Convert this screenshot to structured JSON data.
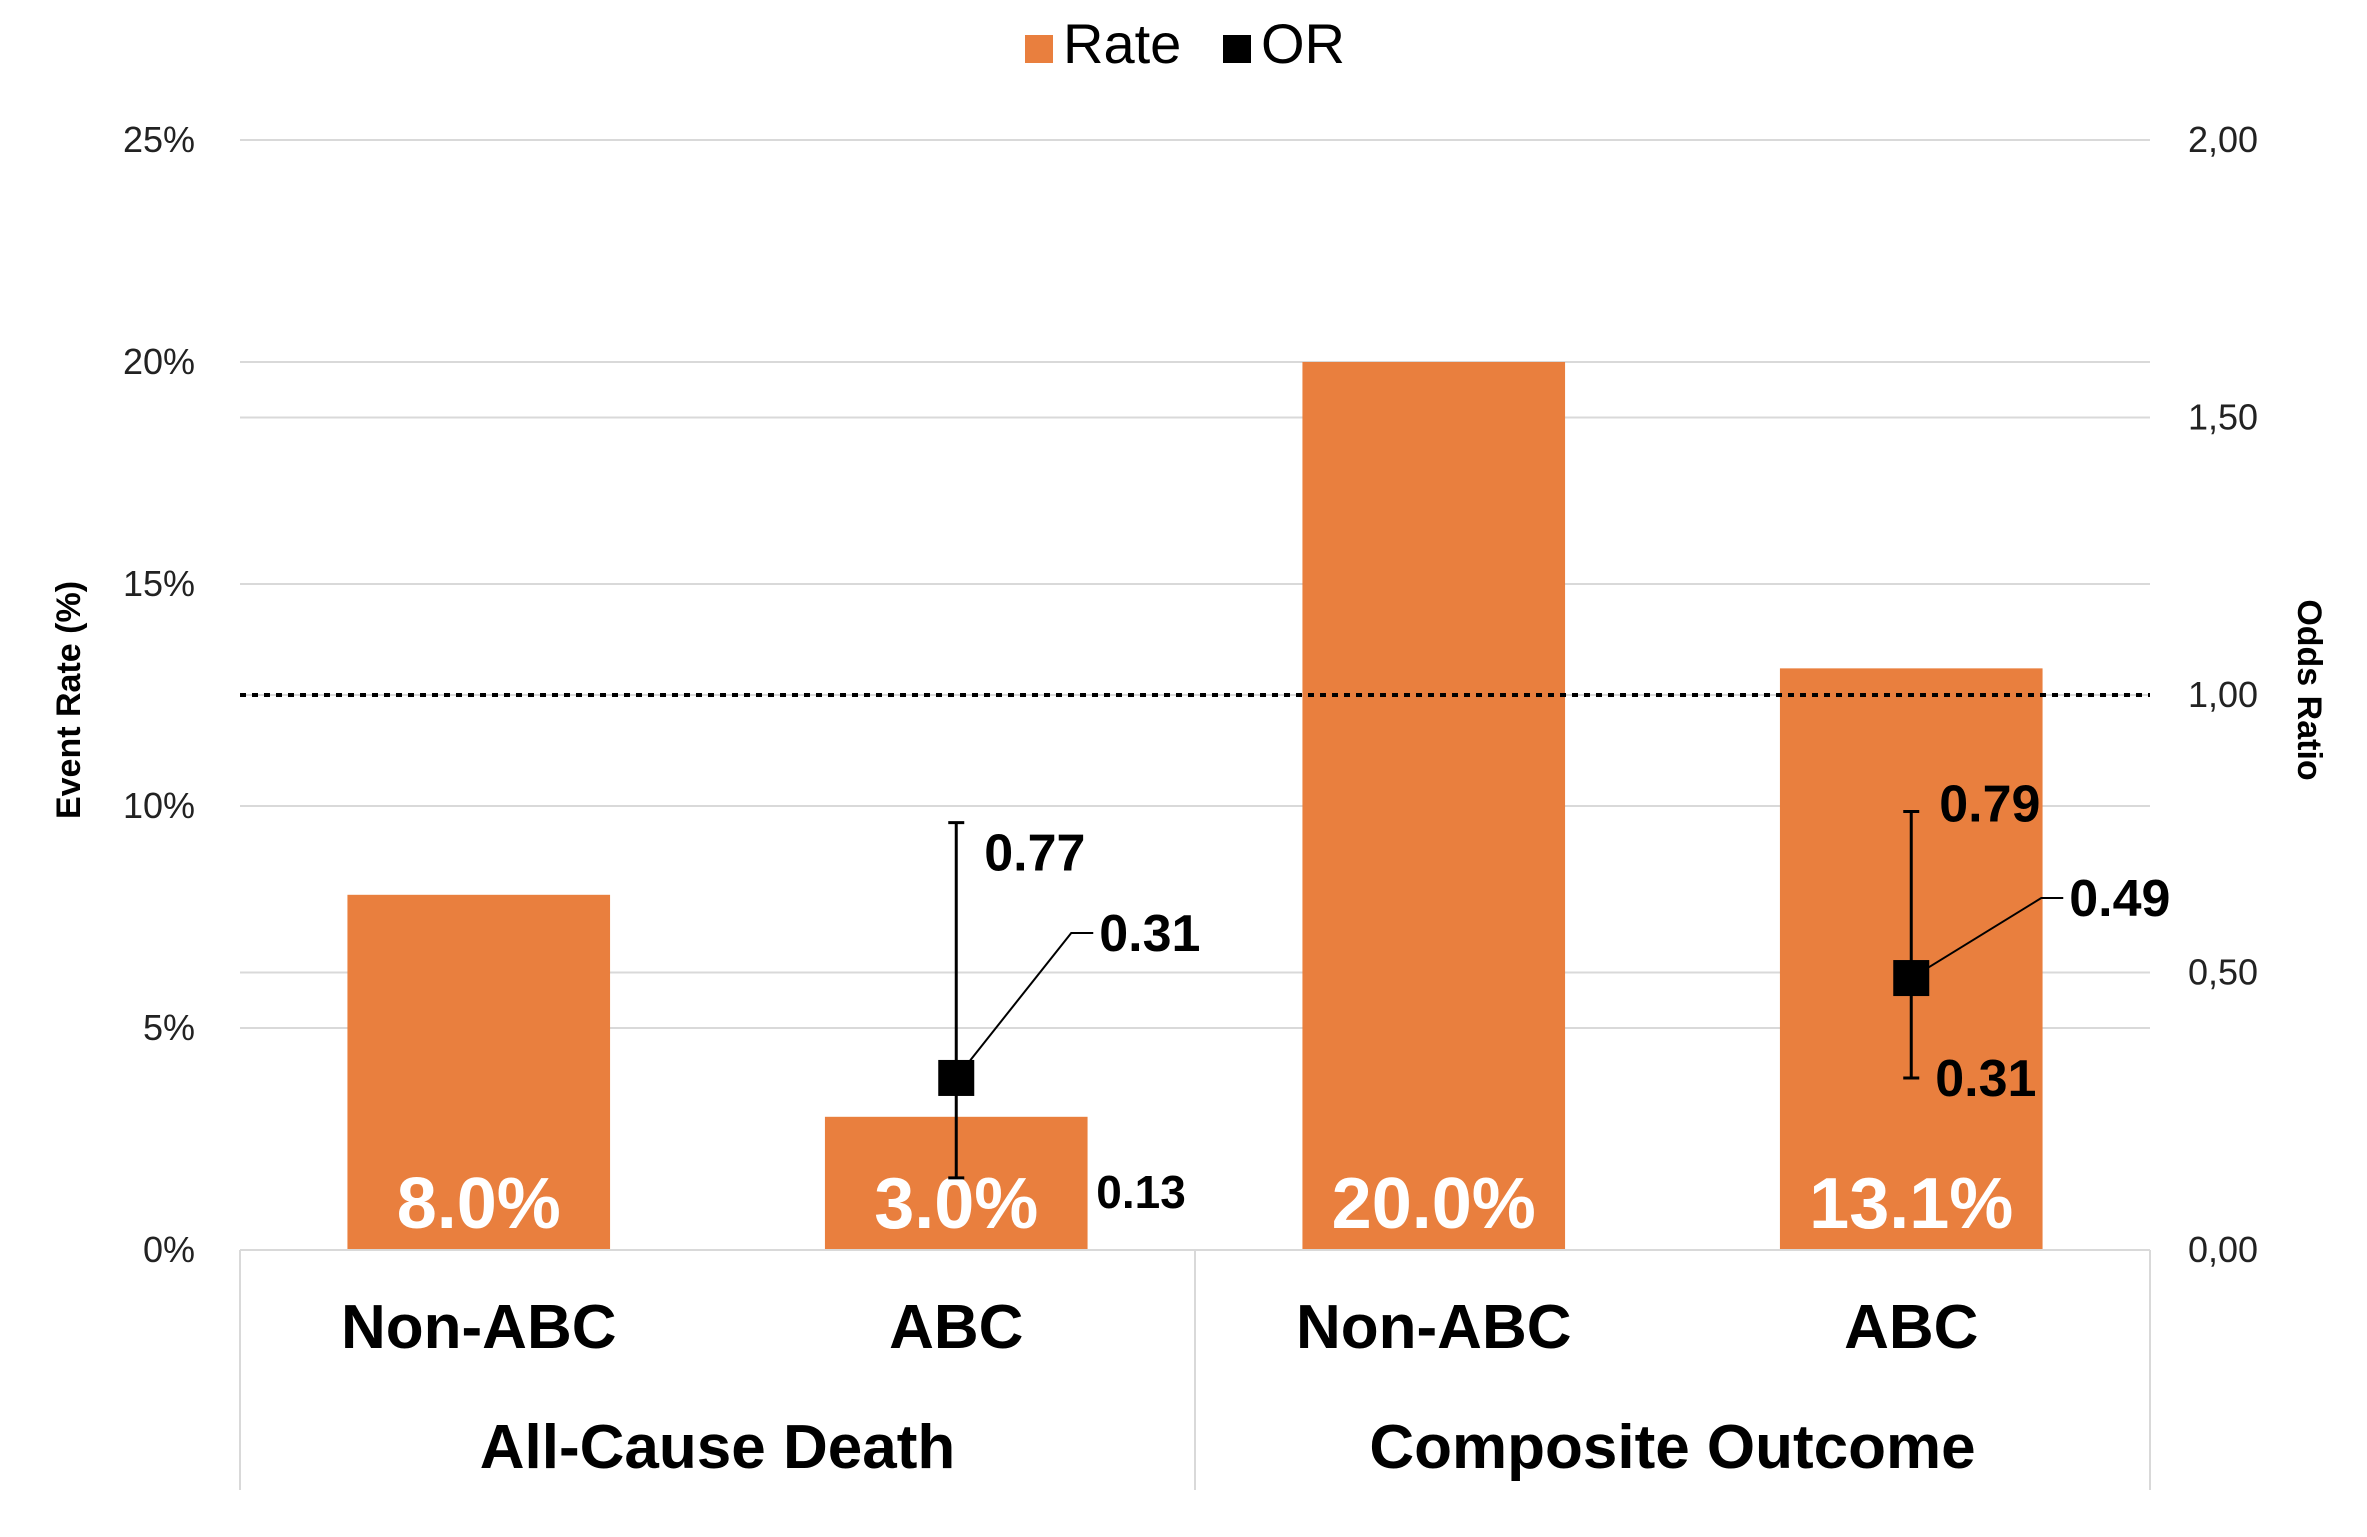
{
  "colors": {
    "rate": "#E97F3E",
    "or": "#000000",
    "grid": "#D9D9D9",
    "axis_text": "#222222",
    "bar_label": "#ffffff"
  },
  "legend": [
    {
      "name": "Rate",
      "color": "#E97F3E"
    },
    {
      "name": "OR",
      "color": "#000000"
    }
  ],
  "chart_data": {
    "type": "bar",
    "groups": [
      "All-Cause Death",
      "Composite Outcome"
    ],
    "categories": [
      "Non-ABC",
      "ABC",
      "Non-ABC",
      "ABC"
    ],
    "category_group": [
      0,
      0,
      1,
      1
    ],
    "series": [
      {
        "name": "Rate",
        "type": "bar",
        "axis": "left",
        "values": [
          8.0,
          3.0,
          20.0,
          13.1
        ],
        "labels": [
          "8.0%",
          "3.0%",
          "20.0%",
          "13.1%"
        ]
      },
      {
        "name": "OR",
        "type": "point-errorbar",
        "axis": "right",
        "points": [
          {
            "category_index": 1,
            "value": 0.31,
            "low": 0.13,
            "high": 0.77,
            "labels": {
              "value": "0.31",
              "low": "0.13",
              "high": "0.77"
            }
          },
          {
            "category_index": 3,
            "value": 0.49,
            "low": 0.31,
            "high": 0.79,
            "labels": {
              "value": "0.49",
              "low": "0.31",
              "high": "0.79"
            }
          }
        ]
      }
    ],
    "ylabel": "Event Rate (%)",
    "y2label": "Odds Ratio",
    "ylim": [
      0,
      25
    ],
    "y2lim": [
      0,
      2
    ],
    "yticks": [
      0,
      5,
      10,
      15,
      20,
      25
    ],
    "ytick_labels": [
      "0%",
      "5%",
      "10%",
      "15%",
      "20%",
      "25%"
    ],
    "y2ticks": [
      0,
      0.5,
      1.0,
      1.5,
      2.0
    ],
    "y2tick_labels": [
      "0,00",
      "0,50",
      "1,00",
      "1,50",
      "2,00"
    ],
    "reference_line": {
      "axis": "right",
      "value": 1.0,
      "style": "dotted"
    },
    "legend_position": "top"
  }
}
